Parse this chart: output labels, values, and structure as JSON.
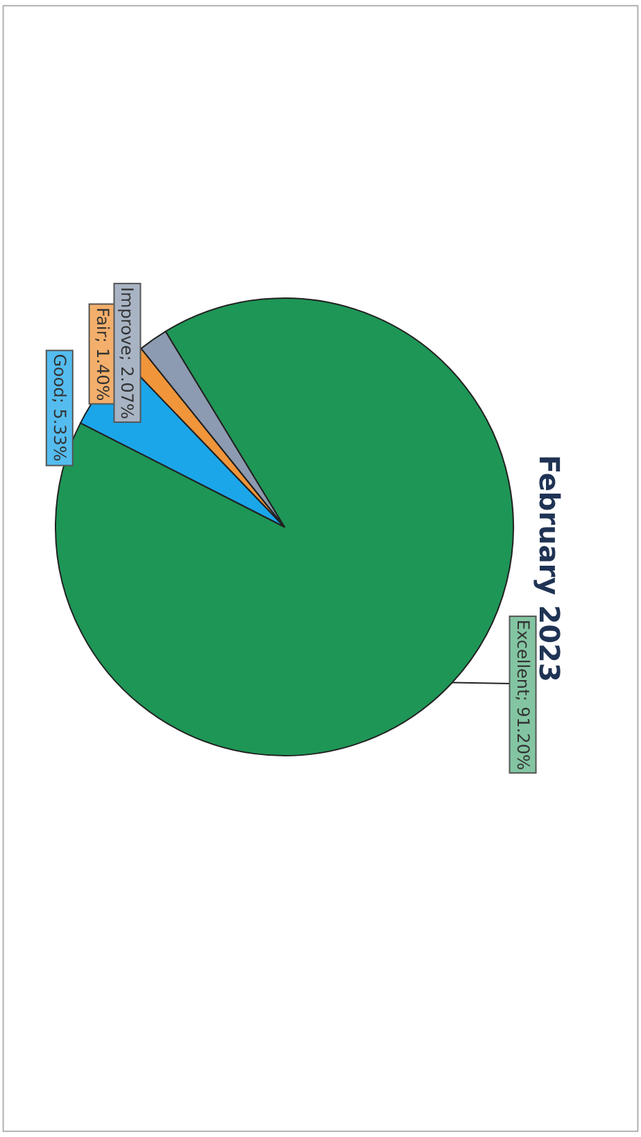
{
  "chart_data": {
    "type": "pie",
    "title": "February 2023",
    "categories": [
      "Excellent",
      "Good",
      "Fair",
      "Improve"
    ],
    "values": [
      91.2,
      5.33,
      1.4,
      2.07
    ],
    "colors": [
      "#1e9656",
      "#1ba6ea",
      "#f0953a",
      "#8c9bb1"
    ],
    "value_labels": [
      "91.20%",
      "5.33%",
      "1.40%",
      "2.07%"
    ]
  }
}
